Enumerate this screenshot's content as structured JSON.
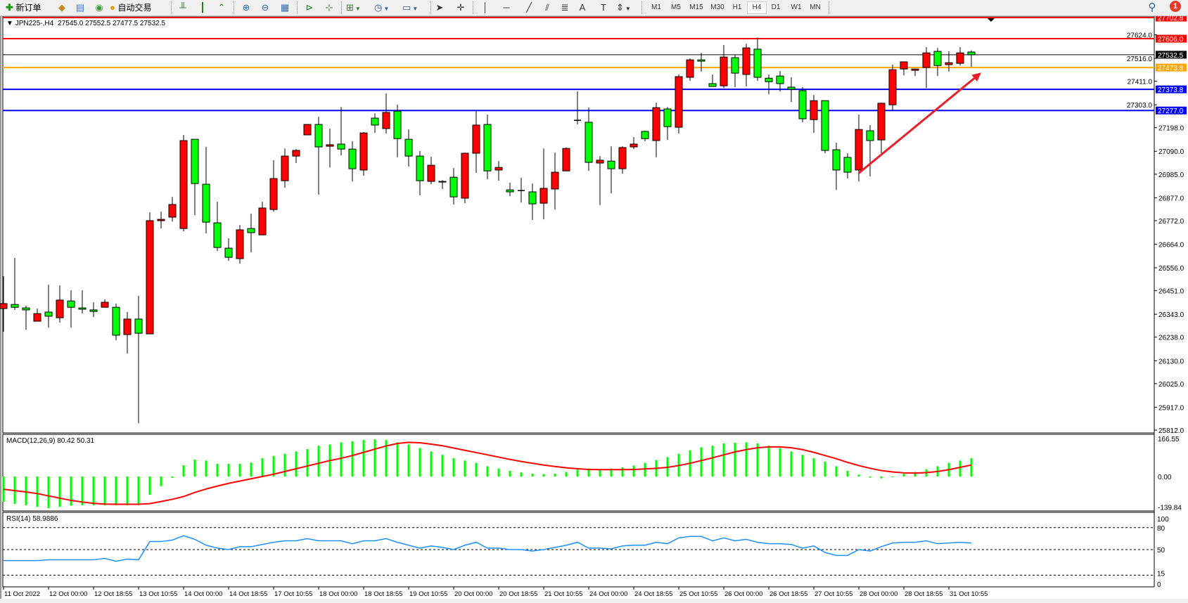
{
  "toolbar": {
    "new_order": "新订单",
    "auto_trading": "自动交易",
    "timeframes": [
      "M1",
      "M5",
      "M15",
      "M30",
      "H1",
      "H4",
      "D1",
      "W1",
      "MN"
    ],
    "active_timeframe": "H4",
    "notification_count": "1"
  },
  "chart": {
    "symbol": "JPN225-,H4",
    "ohlc_readout": "27545.0 27552.5 27477.5 27532.5"
  },
  "chart_data": {
    "type": "candlestick",
    "up_color": "#ff0000",
    "down_color": "#00ff00",
    "ohlc_fields": [
      "open",
      "high",
      "low",
      "close"
    ],
    "ohlc": [
      [
        26369,
        26517,
        26263,
        26392
      ],
      [
        26388,
        26601,
        26363,
        26375
      ],
      [
        26372,
        26382,
        26272,
        26363
      ],
      [
        26311,
        26369,
        26311,
        26346
      ],
      [
        26353,
        26478,
        26282,
        26334
      ],
      [
        26327,
        26475,
        26305,
        26408
      ],
      [
        26404,
        26453,
        26282,
        26375
      ],
      [
        26372,
        26453,
        26346,
        26366
      ],
      [
        26363,
        26398,
        26330,
        26356
      ],
      [
        26375,
        26411,
        26375,
        26398
      ],
      [
        26375,
        26392,
        26224,
        26247
      ],
      [
        26250,
        26353,
        26163,
        26321
      ],
      [
        26321,
        26427,
        25844,
        26256
      ],
      [
        26253,
        26810,
        26253,
        26772
      ],
      [
        26772,
        26813,
        26736,
        26778
      ],
      [
        26788,
        26881,
        26768,
        26846
      ],
      [
        26736,
        27165,
        26723,
        27139
      ],
      [
        27145,
        27145,
        26797,
        26942
      ],
      [
        26939,
        27110,
        26714,
        26765
      ],
      [
        26762,
        26859,
        26633,
        26649
      ],
      [
        26646,
        26691,
        26588,
        26604
      ],
      [
        26598,
        26752,
        26575,
        26730
      ],
      [
        26736,
        26804,
        26627,
        26717
      ],
      [
        26707,
        26859,
        26707,
        26830
      ],
      [
        26823,
        27049,
        26813,
        26965
      ],
      [
        26955,
        27103,
        26923,
        27068
      ],
      [
        27068,
        27100,
        27036,
        27094
      ],
      [
        27165,
        27213,
        27165,
        27213
      ],
      [
        27213,
        27248,
        26891,
        27110
      ],
      [
        27113,
        27194,
        27016,
        27120
      ],
      [
        27123,
        27293,
        27071,
        27100
      ],
      [
        27100,
        27136,
        26952,
        27010
      ],
      [
        27004,
        27178,
        26978,
        27174
      ],
      [
        27242,
        27264,
        27174,
        27210
      ],
      [
        27194,
        27355,
        27171,
        27268
      ],
      [
        27274,
        27303,
        27062,
        27148
      ],
      [
        27145,
        27190,
        27020,
        27068
      ],
      [
        27068,
        27091,
        26888,
        26955
      ],
      [
        26952,
        27065,
        26939,
        27026
      ],
      [
        26952,
        26958,
        26917,
        26949
      ],
      [
        26971,
        27013,
        26846,
        26881
      ],
      [
        26875,
        27084,
        26852,
        27081
      ],
      [
        27081,
        27274,
        26991,
        27210
      ],
      [
        27213,
        27258,
        26962,
        27000
      ],
      [
        27004,
        27045,
        26955,
        27016
      ],
      [
        26913,
        26946,
        26884,
        26904
      ],
      [
        26910,
        26968,
        26855,
        26910
      ],
      [
        26904,
        26942,
        26775,
        26849
      ],
      [
        26852,
        27103,
        26778,
        26920
      ],
      [
        26917,
        27084,
        26823,
        26994
      ],
      [
        27000,
        27107,
        27000,
        27103
      ],
      [
        27232,
        27364,
        27213,
        27232
      ],
      [
        27223,
        27290,
        27000,
        27039
      ],
      [
        27036,
        27068,
        26843,
        27049
      ],
      [
        27045,
        27113,
        26897,
        27010
      ],
      [
        27010,
        27113,
        26987,
        27107
      ],
      [
        27110,
        27155,
        27100,
        27123
      ],
      [
        27181,
        27184,
        27136,
        27148
      ],
      [
        27139,
        27313,
        27062,
        27290
      ],
      [
        27284,
        27293,
        27142,
        27203
      ],
      [
        27200,
        27442,
        27171,
        27432
      ],
      [
        27429,
        27516,
        27413,
        27509
      ],
      [
        27509,
        27541,
        27455,
        27503
      ],
      [
        27400,
        27442,
        27387,
        27387
      ],
      [
        27390,
        27577,
        27380,
        27522
      ],
      [
        27519,
        27532,
        27384,
        27448
      ],
      [
        27442,
        27583,
        27387,
        27564
      ],
      [
        27558,
        27612,
        27413,
        27429
      ],
      [
        27425,
        27442,
        27351,
        27409
      ],
      [
        27435,
        27458,
        27364,
        27400
      ],
      [
        27384,
        27429,
        27316,
        27374
      ],
      [
        27368,
        27384,
        27223,
        27239
      ],
      [
        27235,
        27348,
        27174,
        27322
      ],
      [
        27322,
        27322,
        27081,
        27094
      ],
      [
        27097,
        27129,
        26913,
        27004
      ],
      [
        27062,
        27081,
        26965,
        26994
      ],
      [
        27004,
        27258,
        26952,
        27190
      ],
      [
        27184,
        27210,
        26975,
        27139
      ],
      [
        27142,
        27313,
        27078,
        27310
      ],
      [
        27303,
        27487,
        27277,
        27464
      ],
      [
        27467,
        27500,
        27438,
        27500
      ],
      [
        27461,
        27467,
        27435,
        27467
      ],
      [
        27474,
        27567,
        27380,
        27541
      ],
      [
        27548,
        27564,
        27435,
        27483
      ],
      [
        27487,
        27548,
        27455,
        27496
      ],
      [
        27493,
        27567,
        27483,
        27541
      ],
      [
        27545.0,
        27552.5,
        27477.5,
        27532.5
      ]
    ],
    "ylim": [
      25812.0,
      27702.8
    ],
    "price_ticks": [
      "27624.0",
      "27516.0",
      "27411.0",
      "27303.0",
      "27198.0",
      "27090.0",
      "26985.0",
      "26877.0",
      "26772.0",
      "26664.0",
      "26556.0",
      "26451.0",
      "26343.0",
      "26238.0",
      "26130.0",
      "26025.0",
      "25917.0",
      "25812.0"
    ],
    "hlines": [
      {
        "price": 27702.8,
        "label": "27702.8",
        "color": "#ff0000"
      },
      {
        "price": 27606.0,
        "label": "27606.0",
        "color": "#ff0000"
      },
      {
        "price": 27532.5,
        "label": "27532.5",
        "color": "#000000"
      },
      {
        "price": 27473.8,
        "label": "27473.8",
        "color": "#ffa500"
      },
      {
        "price": 27373.8,
        "label": "27373.8",
        "color": "#0000ff"
      },
      {
        "price": 27277.0,
        "label": "27277.0",
        "color": "#0000ff"
      }
    ],
    "arrow": {
      "color": "#e8202a",
      "from_candle": 77,
      "from_price": 26990,
      "to_candle": 88,
      "to_price": 27470
    },
    "time_labels": [
      "11 Oct 2022",
      "12 Oct 00:00",
      "12 Oct 18:55",
      "13 Oct 10:55",
      "14 Oct 00:00",
      "14 Oct 18:55",
      "17 Oct 10:55",
      "18 Oct 00:00",
      "18 Oct 18:55",
      "19 Oct 10:55",
      "20 Oct 00:00",
      "20 Oct 18:55",
      "21 Oct 10:55",
      "24 Oct 00:00",
      "24 Oct 18:55",
      "25 Oct 10:55",
      "26 Oct 00:00",
      "26 Oct 18:55",
      "27 Oct 10:55",
      "28 Oct 00:00",
      "28 Oct 18:55",
      "31 Oct 10:55"
    ],
    "macd": {
      "label": "MACD(12,26,9) 80.42 50.31",
      "hist_color": "#00ff00",
      "signal_color": "#ff0000",
      "ticks": [
        "166.55",
        "0.00",
        "-139.84"
      ],
      "ylim": [
        -139.84,
        166.55
      ],
      "main": [
        -111,
        -120,
        -126,
        -133,
        -139,
        -133,
        -128,
        -126,
        -126,
        -126,
        -126,
        -126,
        -126,
        -80,
        -42,
        -6,
        49,
        74,
        70,
        56,
        56,
        56,
        61,
        80,
        90,
        100,
        110,
        120,
        135,
        140,
        150,
        155,
        160,
        163,
        160,
        150,
        140,
        125,
        110,
        95,
        80,
        70,
        60,
        45,
        35,
        25,
        18,
        12,
        10,
        12,
        20,
        30,
        35,
        32,
        35,
        40,
        48,
        60,
        72,
        85,
        100,
        115,
        128,
        135,
        145,
        148,
        150,
        145,
        135,
        125,
        110,
        95,
        80,
        65,
        45,
        25,
        8,
        -5,
        -8,
        -3,
        12,
        20,
        32,
        45,
        60,
        70,
        80.42
      ],
      "signal": [
        -56,
        -62,
        -68,
        -75,
        -85,
        -95,
        -105,
        -112,
        -118,
        -121,
        -122,
        -122,
        -122,
        -119,
        -110,
        -100,
        -88,
        -70,
        -55,
        -42,
        -30,
        -20,
        -10,
        0,
        10,
        22,
        34,
        46,
        58,
        70,
        80,
        92,
        106,
        120,
        134,
        145,
        150,
        148,
        142,
        135,
        125,
        115,
        105,
        95,
        85,
        75,
        66,
        58,
        50,
        44,
        38,
        34,
        31,
        30,
        30,
        30,
        31,
        33,
        36,
        40,
        48,
        58,
        70,
        82,
        95,
        108,
        118,
        126,
        130,
        130,
        126,
        118,
        106,
        92,
        78,
        62,
        48,
        36,
        26,
        20,
        16,
        15,
        17,
        22,
        30,
        40,
        50.31
      ]
    },
    "rsi": {
      "label": "RSI(14) 58.9886",
      "color": "#1e90ff",
      "ticks": [
        "100",
        "80",
        "50",
        "15",
        "0"
      ],
      "levels": [
        80,
        50,
        15
      ],
      "values": [
        35,
        35,
        35,
        35,
        36,
        36,
        36,
        36,
        36,
        38,
        34,
        37,
        36,
        61,
        61,
        63,
        69,
        64,
        56,
        52,
        50,
        54,
        54,
        57,
        60,
        62,
        62,
        65,
        62,
        62,
        62,
        58,
        62,
        62,
        65,
        60,
        56,
        52,
        55,
        53,
        50,
        56,
        60,
        52,
        52,
        50,
        50,
        48,
        50,
        53,
        56,
        60,
        52,
        52,
        51,
        55,
        56,
        56,
        60,
        58,
        66,
        68,
        68,
        62,
        66,
        62,
        64,
        60,
        58,
        58,
        57,
        52,
        55,
        46,
        42,
        42,
        50,
        48,
        54,
        59,
        60,
        60,
        62,
        58,
        59,
        60,
        58.9886
      ]
    }
  }
}
